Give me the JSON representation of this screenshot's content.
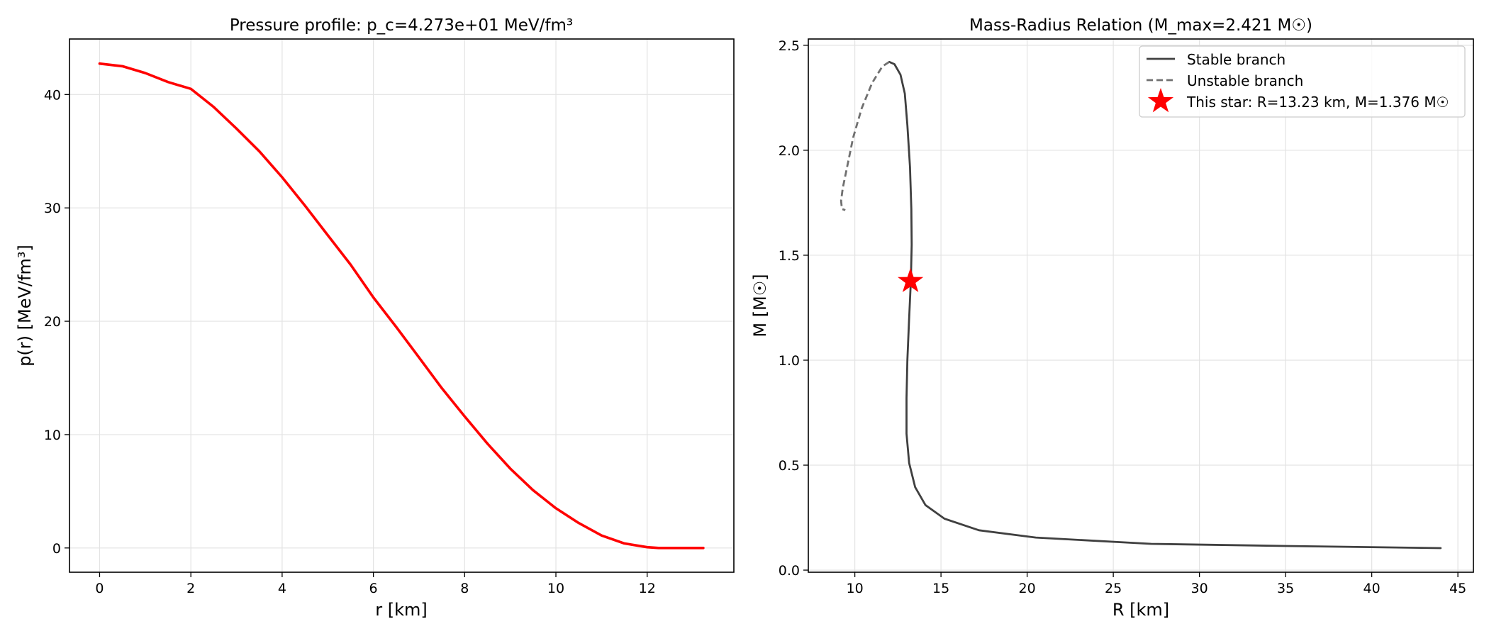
{
  "chart_data": [
    {
      "type": "line",
      "title": "Pressure profile: p_c=4.273e+01 MeV/fm³",
      "xlabel": "r [km]",
      "ylabel": "p(r) [MeV/fm³]",
      "xlim": [
        -0.66,
        13.9
      ],
      "ylim": [
        -2.14,
        44.9
      ],
      "xticks": [
        0,
        2,
        4,
        6,
        8,
        10,
        12
      ],
      "yticks": [
        0,
        10,
        20,
        30,
        40
      ],
      "grid": true,
      "series": [
        {
          "color": "#ff0000",
          "x": [
            0,
            0.5,
            1,
            1.5,
            2,
            2.5,
            3,
            3.5,
            4,
            4.5,
            5,
            5.5,
            6,
            6.5,
            7,
            7.5,
            8,
            8.5,
            9,
            9.5,
            10,
            10.5,
            11,
            11.5,
            12,
            12.25,
            12.5,
            12.75,
            13,
            13.23
          ],
          "y": [
            42.73,
            42.5,
            41.9,
            41.1,
            40.5,
            38.9,
            37.0,
            35.0,
            32.7,
            30.2,
            27.6,
            25.0,
            22.1,
            19.5,
            16.8,
            14.1,
            11.6,
            9.2,
            7.0,
            5.1,
            3.5,
            2.2,
            1.1,
            0.4,
            0.07,
            0.0,
            0.0,
            0.0,
            0.0,
            0.0
          ]
        }
      ]
    },
    {
      "type": "line",
      "title": "Mass-Radius Relation (M_max=2.421 M☉)",
      "xlabel": "R [km]",
      "ylabel": "M [M☉]",
      "xlim": [
        7.3,
        45.9
      ],
      "ylim": [
        -0.01,
        2.53
      ],
      "xticks": [
        10,
        15,
        20,
        25,
        30,
        35,
        40,
        45
      ],
      "yticks": [
        0.0,
        0.5,
        1.0,
        1.5,
        2.0,
        2.5
      ],
      "grid": true,
      "legend_position": "top-right",
      "series": [
        {
          "name": "Stable branch",
          "style": "solid",
          "color": "#404040",
          "x": [
            44.0,
            35.0,
            27.2,
            20.5,
            17.2,
            15.2,
            14.1,
            13.5,
            13.15,
            13.0,
            13.0,
            13.05,
            13.15,
            13.25,
            13.3,
            13.28,
            13.2,
            13.05,
            12.9,
            12.65,
            12.3,
            12.0
          ],
          "y": [
            0.105,
            0.115,
            0.125,
            0.155,
            0.19,
            0.245,
            0.31,
            0.395,
            0.51,
            0.65,
            0.82,
            1.0,
            1.2,
            1.376,
            1.55,
            1.72,
            1.92,
            2.12,
            2.27,
            2.36,
            2.41,
            2.421
          ]
        },
        {
          "name": "Unstable branch",
          "style": "dashed",
          "color": "#707070",
          "x": [
            12.0,
            11.6,
            11.0,
            10.4,
            9.9,
            9.55,
            9.3,
            9.2,
            9.25,
            9.45
          ],
          "y": [
            2.421,
            2.4,
            2.32,
            2.2,
            2.06,
            1.92,
            1.82,
            1.76,
            1.72,
            1.715
          ]
        }
      ],
      "marker": {
        "name": "This star: R=13.23 km, M=1.376 M☉",
        "x": 13.23,
        "y": 1.376,
        "shape": "star",
        "color": "#ff0000"
      }
    }
  ]
}
